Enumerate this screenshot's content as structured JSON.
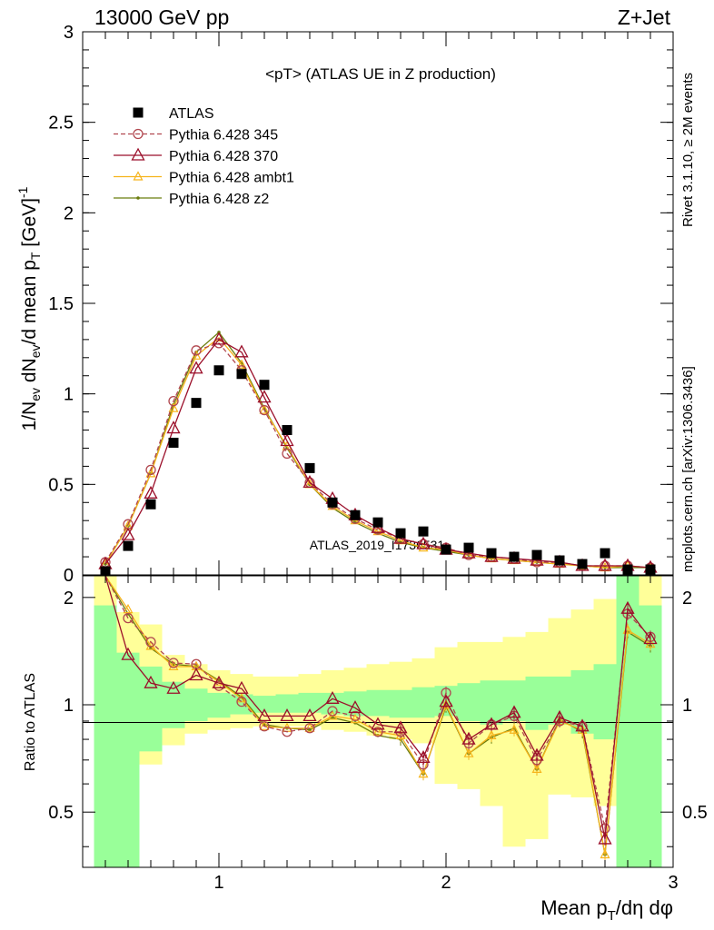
{
  "header": {
    "left": "13000 GeV pp",
    "right": "Z+Jet"
  },
  "side_labels": {
    "rivet": "Rivet 3.1.10, ≥ 2M events",
    "mcplots": "mcplots.cern.ch [arXiv:1306.3436]"
  },
  "colors": {
    "atlas": "#000000",
    "p345": "#b1474f",
    "p370": "#9b0f2a",
    "ambt1": "#f6b41c",
    "z2": "#6b7d0e",
    "band_inner": "#99ff99",
    "band_outer": "#ffff99"
  },
  "chart_data": [
    {
      "type": "line",
      "title": "<pT> (ATLAS UE in Z production)",
      "ylabel": "1/N_ev dN_ev/d mean p_T [GeV]^-1",
      "xlabel": "Mean p_T/dη dφ",
      "watermark": "ATLAS_2019_I1736531",
      "xlim": [
        0.4,
        3.0
      ],
      "ylim": [
        0,
        3
      ],
      "y_ticks": [
        "0",
        "0.5",
        "1",
        "1.5",
        "2",
        "2.5",
        "3"
      ],
      "legend_position": "top-left",
      "x": [
        0.5,
        0.6,
        0.7,
        0.8,
        0.9,
        1.0,
        1.1,
        1.2,
        1.3,
        1.4,
        1.5,
        1.6,
        1.7,
        1.8,
        1.9,
        2.0,
        2.1,
        2.2,
        2.3,
        2.4,
        2.5,
        2.6,
        2.7,
        2.8,
        2.9
      ],
      "series": [
        {
          "name": "ATLAS",
          "marker": "square",
          "values": [
            0.02,
            0.16,
            0.39,
            0.73,
            0.95,
            1.13,
            1.11,
            1.05,
            0.8,
            0.59,
            0.4,
            0.33,
            0.29,
            0.23,
            0.24,
            0.14,
            0.15,
            0.12,
            0.1,
            0.11,
            0.08,
            0.06,
            0.12,
            0.03,
            0.03
          ]
        },
        {
          "name": "Pythia 6.428 345",
          "marker": "circle",
          "dashed": true,
          "values": [
            0.07,
            0.28,
            0.58,
            0.96,
            1.24,
            1.28,
            1.13,
            0.91,
            0.67,
            0.51,
            0.39,
            0.31,
            0.25,
            0.2,
            0.17,
            0.15,
            0.11,
            0.1,
            0.09,
            0.07,
            0.07,
            0.05,
            0.05,
            0.05,
            0.04
          ]
        },
        {
          "name": "Pythia 6.428 370",
          "marker": "triangle",
          "values": [
            0.06,
            0.22,
            0.45,
            0.81,
            1.14,
            1.3,
            1.23,
            0.98,
            0.74,
            0.51,
            0.42,
            0.33,
            0.26,
            0.2,
            0.17,
            0.14,
            0.12,
            0.1,
            0.09,
            0.08,
            0.07,
            0.05,
            0.05,
            0.05,
            0.04
          ]
        },
        {
          "name": "Pythia 6.428 ambt1",
          "marker": "triangle-small",
          "values": [
            0.06,
            0.27,
            0.56,
            0.92,
            1.21,
            1.31,
            1.16,
            0.91,
            0.71,
            0.5,
            0.38,
            0.3,
            0.24,
            0.19,
            0.15,
            0.14,
            0.11,
            0.09,
            0.08,
            0.07,
            0.06,
            0.05,
            0.04,
            0.05,
            0.04
          ]
        },
        {
          "name": "Pythia 6.428 z2",
          "marker": "dot",
          "values": [
            0.06,
            0.27,
            0.56,
            0.94,
            1.23,
            1.34,
            1.17,
            0.92,
            0.7,
            0.5,
            0.37,
            0.29,
            0.23,
            0.18,
            0.15,
            0.13,
            0.11,
            0.09,
            0.08,
            0.07,
            0.06,
            0.05,
            0.04,
            0.04,
            0.04
          ]
        }
      ]
    },
    {
      "type": "line",
      "ylabel": "Ratio to ATLAS",
      "xlabel": "Mean p_T/dη dφ",
      "xlim": [
        0.4,
        3.0
      ],
      "ylim": [
        0.35,
        2.3
      ],
      "y_ticks": [
        "0.5",
        "1",
        "2"
      ],
      "x_ticks": [
        "1",
        "2",
        "3"
      ],
      "reference_line": 1,
      "bin_edges": [
        0.45,
        0.55,
        0.65,
        0.75,
        0.85,
        0.95,
        1.05,
        1.15,
        1.25,
        1.35,
        1.45,
        1.55,
        1.65,
        1.75,
        1.85,
        1.95,
        2.05,
        2.15,
        2.25,
        2.35,
        2.45,
        2.55,
        2.65,
        2.75,
        2.85,
        2.95
      ],
      "band_inner": {
        "lo": [
          0.1,
          0.1,
          0.74,
          0.86,
          0.9,
          0.92,
          0.94,
          0.95,
          0.95,
          0.95,
          0.94,
          0.93,
          0.93,
          0.92,
          0.92,
          0.93,
          0.9,
          0.88,
          0.9,
          0.85,
          0.88,
          0.83,
          0.8,
          0.1,
          0.1
        ],
        "hi": [
          1.9,
          1.4,
          1.28,
          1.16,
          1.11,
          1.08,
          1.07,
          1.06,
          1.07,
          1.08,
          1.08,
          1.09,
          1.1,
          1.1,
          1.12,
          1.13,
          1.15,
          1.17,
          1.17,
          1.2,
          1.2,
          1.25,
          1.3,
          2.3,
          1.9
        ]
      },
      "band_outer": {
        "lo": [
          0.1,
          0.6,
          0.68,
          0.77,
          0.83,
          0.85,
          0.86,
          0.87,
          0.87,
          0.87,
          0.85,
          0.84,
          0.82,
          0.8,
          0.78,
          0.6,
          0.58,
          0.52,
          0.4,
          0.42,
          0.56,
          0.55,
          0.52,
          0.1,
          0.1
        ],
        "hi": [
          2.3,
          1.82,
          1.68,
          1.38,
          1.3,
          1.25,
          1.22,
          1.2,
          1.2,
          1.22,
          1.25,
          1.27,
          1.3,
          1.32,
          1.35,
          1.45,
          1.5,
          1.5,
          1.55,
          1.6,
          1.75,
          1.85,
          1.98,
          2.3,
          2.3
        ]
      },
      "series": [
        {
          "name": "Pythia 6.428 345",
          "values": [
            3.5,
            1.75,
            1.5,
            1.31,
            1.3,
            1.13,
            1.02,
            0.87,
            0.84,
            0.86,
            0.96,
            0.93,
            0.84,
            0.84,
            0.68,
            1.08,
            0.78,
            0.88,
            0.93,
            0.7,
            0.9,
            0.87,
            0.45,
            1.8,
            1.55
          ]
        },
        {
          "name": "Pythia 6.428 370",
          "values": [
            3.0,
            1.38,
            1.15,
            1.11,
            1.21,
            1.15,
            1.11,
            0.93,
            0.93,
            0.93,
            1.04,
            0.98,
            0.88,
            0.86,
            0.71,
            1.02,
            0.8,
            0.88,
            0.95,
            0.72,
            0.92,
            0.87,
            0.42,
            1.86,
            1.53
          ]
        },
        {
          "name": "Pythia 6.428 ambt1",
          "values": [
            3.4,
            1.85,
            1.46,
            1.28,
            1.28,
            1.16,
            1.04,
            0.87,
            0.86,
            0.86,
            0.93,
            0.91,
            0.84,
            0.82,
            0.64,
            1.0,
            0.73,
            0.82,
            0.85,
            0.66,
            0.9,
            0.85,
            0.38,
            1.62,
            1.48
          ]
        },
        {
          "name": "Pythia 6.428 z2",
          "values": [
            3.4,
            1.8,
            1.44,
            1.3,
            1.28,
            1.17,
            1.05,
            0.88,
            0.86,
            0.85,
            0.92,
            0.89,
            0.82,
            0.8,
            0.64,
            0.99,
            0.73,
            0.81,
            0.86,
            0.66,
            0.91,
            0.84,
            0.38,
            1.6,
            1.46
          ]
        }
      ]
    }
  ]
}
